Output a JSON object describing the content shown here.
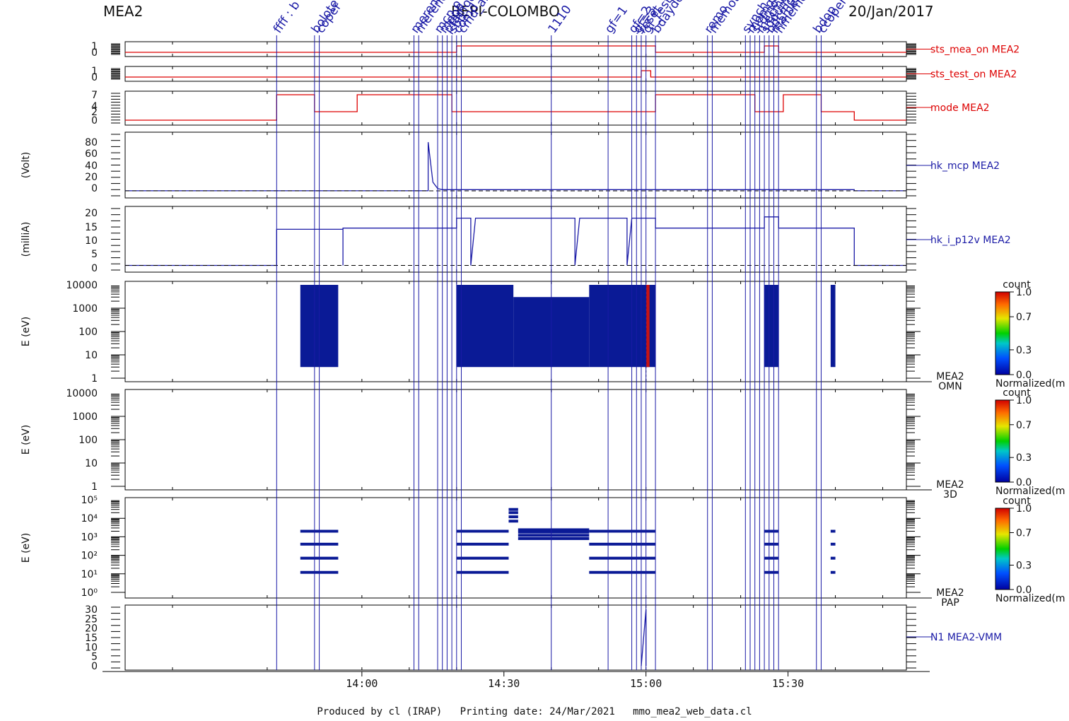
{
  "header": {
    "instrument": "MEA2",
    "mission": "BEPI-COLOMBO",
    "date": "20/Jan/2017"
  },
  "footer": {
    "text": "Produced by cl (IRAP)   Printing date: 24/Mar/2021   mmo_mea2_web_data.cl"
  },
  "colors": {
    "red": "#dd0000",
    "blue": "#1a1aa6",
    "dark_blue": "#0a1a96",
    "ink": "#111111"
  },
  "chart_data": [
    {
      "type": "line",
      "panel": "sts_mea_on",
      "title": "sts_mea_on MEA2",
      "y_ticks": [
        "1",
        "0"
      ],
      "ylim": [
        0,
        1
      ],
      "series": [
        {
          "name": "sts_mea_on MEA2",
          "color": "#dd0000",
          "x": [
            "13:10",
            "14:20",
            "14:20",
            "15:02",
            "15:02",
            "15:25",
            "15:25",
            "15:28",
            "15:28",
            "15:55"
          ],
          "y": [
            0,
            0,
            1,
            1,
            0,
            0,
            1,
            1,
            0,
            0
          ]
        }
      ]
    },
    {
      "type": "line",
      "panel": "sts_test_on",
      "title": "sts_test_on MEA2",
      "y_ticks": [
        "1",
        "0"
      ],
      "ylim": [
        0,
        1
      ],
      "series": [
        {
          "name": "sts_test_on MEA2",
          "color": "#dd0000",
          "x": [
            "13:10",
            "14:59",
            "14:59",
            "15:01",
            "15:01",
            "15:55"
          ],
          "y": [
            0,
            0,
            1,
            1,
            0,
            0
          ]
        }
      ]
    },
    {
      "type": "line",
      "panel": "mode",
      "title": "mode MEA2",
      "y_ticks": [
        "7",
        "4",
        "2",
        "0"
      ],
      "ylim": [
        0,
        7
      ],
      "series": [
        {
          "name": "mode MEA2",
          "color": "#dd0000",
          "x": [
            "13:10",
            "13:42",
            "13:42",
            "13:50",
            "13:50",
            "13:59",
            "13:59",
            "14:19",
            "14:19",
            "15:02",
            "15:02",
            "15:23",
            "15:23",
            "15:29",
            "15:29",
            "15:37",
            "15:37",
            "15:44",
            "15:44",
            "15:55"
          ],
          "y": [
            0,
            0,
            7,
            7,
            2,
            2,
            7,
            7,
            2,
            2,
            7,
            7,
            2,
            2,
            7,
            7,
            2,
            2,
            0,
            0
          ]
        }
      ]
    },
    {
      "type": "line",
      "panel": "hk_mcp",
      "title": "hk_mcp MEA2",
      "ylabel": "(Volt)",
      "y_ticks": [
        "80",
        "60",
        "40",
        "20",
        "0"
      ],
      "ylim": [
        -5,
        95
      ],
      "series": [
        {
          "name": "hk_mcp MEA2",
          "color": "#1a1aa6",
          "x": [
            "13:10",
            "14:14",
            "14:14",
            "14:15",
            "14:16",
            "14:17",
            "14:19",
            "14:30",
            "15:00",
            "15:30",
            "15:44",
            "15:44",
            "15:55"
          ],
          "y": [
            0,
            0,
            85,
            15,
            4,
            2,
            2,
            2,
            2,
            2,
            2,
            0,
            0
          ]
        }
      ]
    },
    {
      "type": "line",
      "panel": "hk_i_p12v",
      "title": "hk_i_p12v MEA2",
      "ylabel": "(milliA)",
      "y_ticks": [
        "20",
        "15",
        "10",
        "5",
        "0"
      ],
      "ylim": [
        -1,
        22
      ],
      "series": [
        {
          "name": "hk_i_p12v MEA2",
          "color": "#1a1aa6",
          "x": [
            "13:10",
            "13:42",
            "13:42",
            "13:56",
            "13:56",
            "13:56",
            "14:20",
            "14:20",
            "14:21",
            "14:23",
            "14:23",
            "14:24",
            "14:45",
            "14:45",
            "14:46",
            "14:56",
            "14:56",
            "14:57",
            "15:02",
            "15:02",
            "15:25",
            "15:25",
            "15:28",
            "15:28",
            "15:44",
            "15:44",
            "15:55"
          ],
          "y": [
            0,
            0,
            14.5,
            14.5,
            0,
            15,
            15,
            19,
            19,
            19,
            0,
            19,
            19,
            0,
            19,
            19,
            0,
            19,
            19,
            15,
            15,
            19.5,
            19.5,
            15,
            15,
            0,
            0
          ]
        }
      ]
    },
    {
      "type": "heatmap",
      "panel": "OMN",
      "title": "MEA2 OMN",
      "ylabel": "E (eV)",
      "y_ticks": [
        "10000",
        "1000",
        "100",
        "10",
        "1"
      ],
      "scale": "log",
      "colorbar": {
        "label": "count",
        "ticks": [
          "1.0",
          "0.7",
          "0.3",
          "0.0"
        ],
        "footer": "Normalized(m"
      },
      "blocks": [
        {
          "start": "13:47",
          "end": "13:55",
          "emin": 3,
          "emax": 10000,
          "level": 0.0
        },
        {
          "start": "14:20",
          "end": "14:32",
          "emin": 3,
          "emax": 10000,
          "level": 0.0
        },
        {
          "start": "14:32",
          "end": "14:48",
          "emin": 3,
          "emax": 3000,
          "level": 0.0
        },
        {
          "start": "14:48",
          "end": "15:02",
          "emin": 3,
          "emax": 10000,
          "level": 0.0
        },
        {
          "start": "15:25",
          "end": "15:28",
          "emin": 3,
          "emax": 10000,
          "level": 0.0
        },
        {
          "start": "15:39",
          "end": "15:40",
          "emin": 3,
          "emax": 10000,
          "level": 0.0
        },
        {
          "start": "15:00",
          "end": "15:00",
          "emin": 3,
          "emax": 10000,
          "level": 1.0
        }
      ]
    },
    {
      "type": "heatmap",
      "panel": "3D",
      "title": "MEA2 3D",
      "ylabel": "E (eV)",
      "y_ticks": [
        "10000",
        "1000",
        "100",
        "10",
        "1"
      ],
      "scale": "log",
      "colorbar": {
        "label": "count",
        "ticks": [
          "1.0",
          "0.7",
          "0.3",
          "0.0"
        ],
        "footer": "Normalized(m"
      },
      "blocks": []
    },
    {
      "type": "heatmap",
      "panel": "PAP",
      "title": "MEA2 PAP",
      "ylabel": "E (eV)",
      "y_ticks": [
        "10⁵",
        "10⁴",
        "10³",
        "10²",
        "10¹",
        "10⁰"
      ],
      "scale": "log",
      "colorbar": {
        "label": "count",
        "ticks": [
          "1.0",
          "0.7",
          "0.3",
          "0.0"
        ],
        "footer": "Normalized(m"
      },
      "bands": [
        {
          "start": "13:47",
          "end": "13:55",
          "energies": [
            2000,
            400,
            70,
            12
          ]
        },
        {
          "start": "14:20",
          "end": "14:31",
          "energies": [
            2000,
            400,
            70,
            12
          ]
        },
        {
          "start": "14:31",
          "end": "14:33",
          "energies": [
            30000,
            20000,
            12000,
            7000
          ]
        },
        {
          "start": "14:33",
          "end": "14:48",
          "energies": [
            2400,
            1800,
            1200,
            800
          ]
        },
        {
          "start": "14:48",
          "end": "15:02",
          "energies": [
            2000,
            400,
            70,
            12
          ]
        },
        {
          "start": "15:25",
          "end": "15:28",
          "energies": [
            2000,
            400,
            70,
            12
          ]
        },
        {
          "start": "15:39",
          "end": "15:40",
          "energies": [
            2000,
            400,
            70,
            12
          ]
        }
      ]
    },
    {
      "type": "line",
      "panel": "N1",
      "title": "N1 MEA2-VMM",
      "y_ticks": [
        "30",
        "25",
        "20",
        "15",
        "10",
        "5",
        "0"
      ],
      "ylim": [
        0,
        30
      ],
      "series": [
        {
          "name": "N1 MEA2-VMM",
          "color": "#1a1aa6",
          "x": [
            "14:59",
            "15:00",
            "15:00"
          ],
          "y": [
            0,
            30,
            0
          ]
        }
      ]
    }
  ],
  "time_axis": {
    "start": "13:10",
    "end": "15:55",
    "tick_labels": [
      "14:00",
      "14:30",
      "15:00",
      "15:30"
    ]
  },
  "events": [
    {
      "time": "13:42",
      "label": "ffff : b"
    },
    {
      "time": "13:50",
      "label": "bolote"
    },
    {
      "time": "13:51",
      "label": "coper"
    },
    {
      "time": "14:11",
      "label": "merenu"
    },
    {
      "time": "14:12",
      "label": "merend"
    },
    {
      "time": "14:16",
      "label": "mcp o"
    },
    {
      "time": "14:17",
      "label": "mapo"
    },
    {
      "time": "14:18",
      "label": "pfamod"
    },
    {
      "time": "14:19",
      "label": "sbd"
    },
    {
      "time": "14:20",
      "label": "comd"
    },
    {
      "time": "14:21",
      "label": "cmd_an"
    },
    {
      "time": "14:40",
      "label": "1110"
    },
    {
      "time": "14:52",
      "label": "gf=1"
    },
    {
      "time": "14:57",
      "label": "gf=2"
    },
    {
      "time": "14:58",
      "label": "gf=3"
    },
    {
      "time": "14:59",
      "label": "reset"
    },
    {
      "time": "15:00",
      "label": "gf_test"
    },
    {
      "time": "15:02",
      "label": "bdayde"
    },
    {
      "time": "15:13",
      "label": "remo"
    },
    {
      "time": "15:14",
      "label": "memot"
    },
    {
      "time": "15:21",
      "label": "synch"
    },
    {
      "time": "15:22",
      "label": "memdu"
    },
    {
      "time": "15:23",
      "label": "srdmo"
    },
    {
      "time": "15:24",
      "label": "mecmd"
    },
    {
      "time": "15:25",
      "label": "sddum"
    },
    {
      "time": "15:26",
      "label": "bdcmd"
    },
    {
      "time": "15:27",
      "label": "mamen"
    },
    {
      "time": "15:28",
      "label": "hmemor"
    },
    {
      "time": "15:36",
      "label": "bdop"
    },
    {
      "time": "15:37",
      "label": "ccoper"
    }
  ]
}
